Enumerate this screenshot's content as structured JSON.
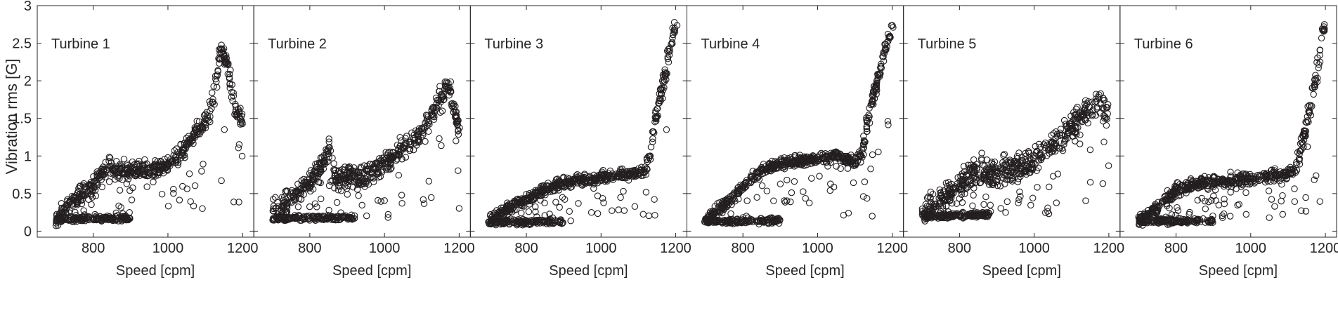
{
  "figure": {
    "ylabel": "Vibration rms [G]",
    "xlabel": "Speed [cpm]",
    "x_ticks": [
      800,
      1000,
      1200
    ],
    "y_ticks": [
      0,
      0.5,
      1,
      1.5,
      2,
      2.5,
      3
    ],
    "y_tick_labels": [
      "0",
      "0.5",
      "1",
      "1.5",
      "2",
      "2.5",
      "3"
    ],
    "marker": "open-circle",
    "marker_color": "#231f20"
  },
  "chart_data": [
    {
      "type": "scatter",
      "title": "Turbine 1",
      "xlabel": "Speed [cpm]",
      "ylabel": "Vibration rms [G]",
      "xlim": [
        650,
        1230
      ],
      "ylim": [
        -0.08,
        3
      ],
      "grid": false,
      "approximate": true,
      "trend": [
        [
          700,
          0.2
        ],
        [
          750,
          0.42
        ],
        [
          800,
          0.6
        ],
        [
          840,
          0.9
        ],
        [
          860,
          0.78
        ],
        [
          900,
          0.8
        ],
        [
          1000,
          0.85
        ],
        [
          1050,
          1.15
        ],
        [
          1100,
          1.45
        ],
        [
          1120,
          1.7
        ],
        [
          1140,
          2.4
        ],
        [
          1160,
          2.25
        ],
        [
          1180,
          1.6
        ],
        [
          1200,
          1.5
        ]
      ],
      "baseline": [
        [
          700,
          0.16
        ],
        [
          900,
          0.17
        ]
      ],
      "spread": 0.1
    },
    {
      "type": "scatter",
      "title": "Turbine 2",
      "xlabel": "Speed [cpm]",
      "xlim": [
        650,
        1230
      ],
      "ylim": [
        -0.08,
        3
      ],
      "grid": false,
      "approximate": true,
      "trend": [
        [
          700,
          0.25
        ],
        [
          780,
          0.55
        ],
        [
          830,
          0.85
        ],
        [
          850,
          1.05
        ],
        [
          870,
          0.7
        ],
        [
          950,
          0.75
        ],
        [
          1000,
          0.9
        ],
        [
          1050,
          1.1
        ],
        [
          1100,
          1.3
        ],
        [
          1150,
          1.8
        ],
        [
          1170,
          1.95
        ],
        [
          1200,
          1.35
        ]
      ],
      "baseline": [
        [
          700,
          0.17
        ],
        [
          920,
          0.18
        ]
      ],
      "spread": 0.12
    },
    {
      "type": "scatter",
      "title": "Turbine 3",
      "xlabel": "Speed [cpm]",
      "xlim": [
        650,
        1230
      ],
      "ylim": [
        -0.08,
        3
      ],
      "grid": false,
      "approximate": true,
      "trend": [
        [
          700,
          0.15
        ],
        [
          750,
          0.3
        ],
        [
          850,
          0.55
        ],
        [
          900,
          0.65
        ],
        [
          1000,
          0.72
        ],
        [
          1100,
          0.78
        ],
        [
          1120,
          0.8
        ],
        [
          1140,
          1.3
        ],
        [
          1160,
          1.8
        ],
        [
          1180,
          2.3
        ],
        [
          1200,
          2.75
        ]
      ],
      "baseline": [
        [
          700,
          0.12
        ],
        [
          900,
          0.13
        ]
      ],
      "spread": 0.06
    },
    {
      "type": "scatter",
      "title": "Turbine 4",
      "xlabel": "Speed [cpm]",
      "xlim": [
        650,
        1230
      ],
      "ylim": [
        -0.08,
        3
      ],
      "grid": false,
      "approximate": true,
      "trend": [
        [
          700,
          0.15
        ],
        [
          750,
          0.35
        ],
        [
          800,
          0.6
        ],
        [
          850,
          0.8
        ],
        [
          900,
          0.9
        ],
        [
          950,
          0.93
        ],
        [
          1000,
          0.97
        ],
        [
          1050,
          1.0
        ],
        [
          1100,
          0.92
        ],
        [
          1120,
          1.05
        ],
        [
          1140,
          1.6
        ],
        [
          1160,
          2.0
        ],
        [
          1180,
          2.4
        ],
        [
          1200,
          2.7
        ]
      ],
      "baseline": [
        [
          700,
          0.13
        ],
        [
          900,
          0.14
        ]
      ],
      "spread": 0.06
    },
    {
      "type": "scatter",
      "title": "Turbine 5",
      "xlabel": "Speed [cpm]",
      "xlim": [
        650,
        1230
      ],
      "ylim": [
        -0.08,
        3
      ],
      "grid": false,
      "approximate": true,
      "trend": [
        [
          700,
          0.25
        ],
        [
          760,
          0.45
        ],
        [
          820,
          0.7
        ],
        [
          850,
          0.8
        ],
        [
          900,
          0.75
        ],
        [
          1000,
          0.95
        ],
        [
          1050,
          1.15
        ],
        [
          1100,
          1.4
        ],
        [
          1150,
          1.6
        ],
        [
          1180,
          1.75
        ],
        [
          1200,
          1.5
        ]
      ],
      "baseline": [
        [
          700,
          0.2
        ],
        [
          880,
          0.22
        ]
      ],
      "spread": 0.16
    },
    {
      "type": "scatter",
      "title": "Turbine 6",
      "xlabel": "Speed [cpm]",
      "xlim": [
        650,
        1230
      ],
      "ylim": [
        -0.08,
        3
      ],
      "grid": false,
      "approximate": true,
      "trend": [
        [
          700,
          0.15
        ],
        [
          750,
          0.3
        ],
        [
          800,
          0.55
        ],
        [
          850,
          0.62
        ],
        [
          900,
          0.65
        ],
        [
          1000,
          0.7
        ],
        [
          1100,
          0.75
        ],
        [
          1120,
          0.85
        ],
        [
          1140,
          1.2
        ],
        [
          1160,
          1.7
        ],
        [
          1180,
          2.2
        ],
        [
          1200,
          2.8
        ]
      ],
      "baseline": [
        [
          700,
          0.13
        ],
        [
          900,
          0.14
        ]
      ],
      "spread": 0.07
    }
  ]
}
